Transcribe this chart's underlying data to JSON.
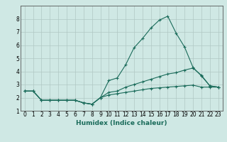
{
  "title": "",
  "xlabel": "Humidex (Indice chaleur)",
  "ylabel": "",
  "bg_color": "#cfe8e4",
  "grid_color": "#b0c8c4",
  "line_color": "#1a6b5a",
  "xlim": [
    -0.5,
    23.5
  ],
  "ylim": [
    1,
    9
  ],
  "yticks": [
    1,
    2,
    3,
    4,
    5,
    6,
    7,
    8
  ],
  "xticks": [
    0,
    1,
    2,
    3,
    4,
    5,
    6,
    7,
    8,
    9,
    10,
    11,
    12,
    13,
    14,
    15,
    16,
    17,
    18,
    19,
    20,
    21,
    22,
    23
  ],
  "series": [
    {
      "x": [
        0,
        1,
        2,
        3,
        4,
        5,
        6,
        7,
        8,
        9,
        10,
        11,
        12,
        13,
        14,
        15,
        16,
        17,
        18,
        19,
        20,
        21,
        22,
        23
      ],
      "y": [
        2.5,
        2.5,
        1.8,
        1.8,
        1.8,
        1.8,
        1.8,
        1.6,
        1.5,
        2.0,
        3.3,
        3.5,
        4.5,
        5.8,
        6.5,
        7.3,
        7.9,
        8.2,
        6.9,
        5.85,
        4.3,
        3.65,
        2.9,
        2.8
      ]
    },
    {
      "x": [
        0,
        1,
        2,
        3,
        4,
        5,
        6,
        7,
        8,
        9,
        10,
        11,
        12,
        13,
        14,
        15,
        16,
        17,
        18,
        19,
        20,
        21,
        22,
        23
      ],
      "y": [
        2.5,
        2.5,
        1.8,
        1.8,
        1.8,
        1.8,
        1.8,
        1.6,
        1.5,
        2.0,
        2.4,
        2.5,
        2.8,
        3.0,
        3.2,
        3.4,
        3.6,
        3.8,
        3.9,
        4.1,
        4.25,
        3.7,
        2.9,
        2.8
      ]
    },
    {
      "x": [
        0,
        1,
        2,
        3,
        4,
        5,
        6,
        7,
        8,
        9,
        10,
        11,
        12,
        13,
        14,
        15,
        16,
        17,
        18,
        19,
        20,
        21,
        22,
        23
      ],
      "y": [
        2.5,
        2.5,
        1.8,
        1.8,
        1.8,
        1.8,
        1.8,
        1.6,
        1.5,
        2.0,
        2.2,
        2.3,
        2.4,
        2.5,
        2.6,
        2.7,
        2.75,
        2.8,
        2.85,
        2.9,
        2.95,
        2.8,
        2.8,
        2.8
      ]
    }
  ]
}
